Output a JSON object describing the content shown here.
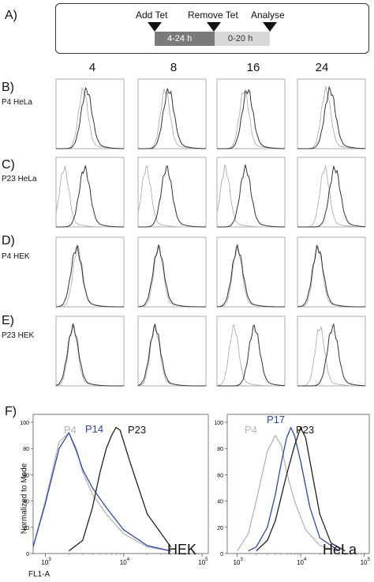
{
  "panels": {
    "a": "A)",
    "b": "B)",
    "c": "C)",
    "d": "D)",
    "e": "E)",
    "f": "F)"
  },
  "timeline": {
    "add": "Add Tet",
    "remove": "Remove Tet",
    "analyse": "Analyse",
    "seg1": "4-24 h",
    "seg2": "0-20 h",
    "seg1_color": "#7a7a7a",
    "seg2_color": "#d8d8d8"
  },
  "columns": [
    "4",
    "8",
    "16",
    "24"
  ],
  "rows": [
    "P4 HeLa",
    "P23 HeLa",
    "P4 HEK",
    "P23 HEK"
  ],
  "f_panels": {
    "ylabel": "Normalized to Mode",
    "xlabel": "FL1-A",
    "hek": {
      "name": "HEK",
      "s1": "P4",
      "s2": "P14",
      "s3": "P23"
    },
    "hela": {
      "name": "HeLa",
      "s1": "P4",
      "s2": "P17",
      "s3": "P23"
    },
    "yticks": [
      "0",
      "20",
      "40",
      "60",
      "80",
      "100"
    ],
    "xticks": [
      "10",
      "10",
      "10"
    ],
    "xexp": [
      "3",
      "4",
      "5"
    ],
    "colors": {
      "light": "#b5b5b5",
      "blue": "#2f43b8",
      "dark": "#222222"
    }
  },
  "chart_data": {
    "type": "line",
    "x_scale": "log",
    "xlabel": "FL1-A",
    "ylabel": "Normalized to Mode",
    "ylim": [
      0,
      100
    ],
    "xlim": [
      700,
      120000
    ],
    "charts": [
      {
        "name": "HEK",
        "series": [
          {
            "name": "P4",
            "x": [
              700,
              1000,
              1500,
              2000,
              2500,
              3000,
              4000,
              6000,
              10000,
              20000,
              40000
            ],
            "y": [
              5,
              40,
              85,
              92,
              80,
              62,
              45,
              30,
              15,
              5,
              2
            ]
          },
          {
            "name": "P14",
            "x": [
              700,
              1000,
              1500,
              2000,
              2500,
              3000,
              4000,
              6000,
              10000,
              20000,
              40000
            ],
            "y": [
              5,
              38,
              80,
              92,
              78,
              64,
              50,
              35,
              18,
              6,
              2
            ]
          },
          {
            "name": "P23",
            "x": [
              2000,
              3000,
              4000,
              5000,
              6000,
              7000,
              8000,
              9000,
              12000,
              20000,
              40000
            ],
            "y": [
              2,
              10,
              35,
              62,
              80,
              90,
              96,
              94,
              70,
              30,
              5
            ]
          }
        ]
      },
      {
        "name": "HeLa",
        "series": [
          {
            "name": "P4",
            "x": [
              1000,
              1500,
              2000,
              3000,
              4000,
              5000,
              6000,
              8000,
              12000,
              20000,
              40000
            ],
            "y": [
              2,
              15,
              40,
              78,
              90,
              82,
              62,
              40,
              18,
              6,
              2
            ]
          },
          {
            "name": "P17",
            "x": [
              1500,
              2000,
              3000,
              4000,
              5000,
              6000,
              7000,
              8000,
              10000,
              14000,
              20000,
              40000
            ],
            "y": [
              2,
              5,
              20,
              45,
              70,
              88,
              96,
              90,
              70,
              35,
              12,
              2
            ]
          },
          {
            "name": "P23",
            "x": [
              2000,
              3000,
              4000,
              6000,
              8000,
              10000,
              12000,
              16000,
              20000,
              30000,
              50000
            ],
            "y": [
              2,
              10,
              25,
              60,
              82,
              96,
              88,
              55,
              30,
              8,
              2
            ]
          }
        ]
      }
    ]
  }
}
